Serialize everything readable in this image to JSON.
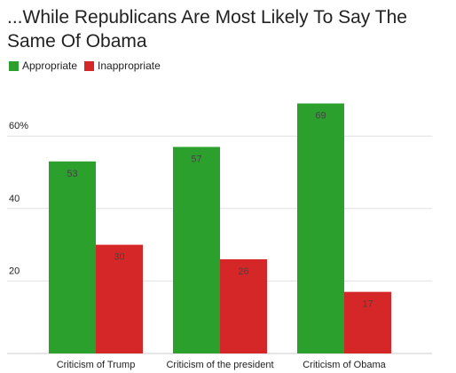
{
  "chart_data": {
    "type": "bar",
    "title": "...While Republicans Are Most Likely To Say The Same Of Obama",
    "categories": [
      "Criticism of Trump",
      "Criticism of the president",
      "Criticism of Obama"
    ],
    "series": [
      {
        "name": "Appropriate",
        "values": [
          53,
          57,
          69
        ],
        "color": "#2ca02c"
      },
      {
        "name": "Inappropriate",
        "values": [
          30,
          26,
          17
        ],
        "color": "#d62728"
      }
    ],
    "ylim": [
      0,
      75
    ],
    "yticks": [
      {
        "value": 20,
        "label": "20"
      },
      {
        "value": 40,
        "label": "40"
      },
      {
        "value": 60,
        "label": "60%"
      }
    ],
    "grid": true,
    "legend_position": "top-left",
    "xlabel": "",
    "ylabel": ""
  }
}
